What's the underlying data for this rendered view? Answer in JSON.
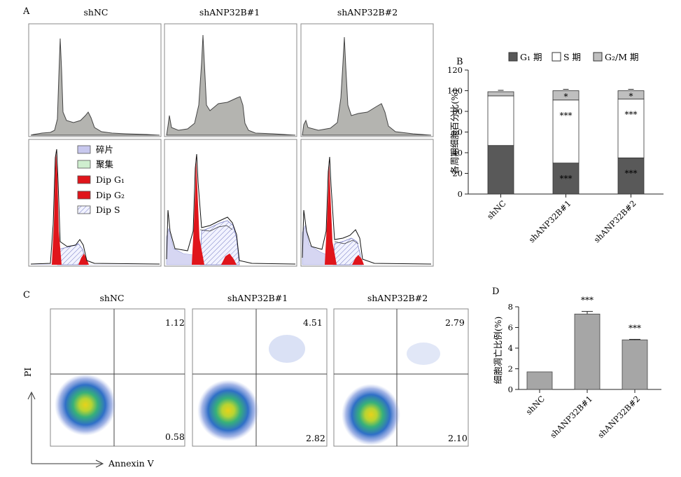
{
  "panels": {
    "a": "A",
    "b": "B",
    "c": "C",
    "d": "D"
  },
  "panel_a": {
    "groups": [
      "shNC",
      "shANP32B#1",
      "shANP32B#2"
    ],
    "legend": [
      {
        "label": "碎片",
        "color": "#c8c8ee"
      },
      {
        "label": "聚集",
        "color": "#cfeecf"
      },
      {
        "label": "Dip G₁",
        "color": "#e0151b"
      },
      {
        "label": "Dip G₂",
        "color": "#e0151b"
      },
      {
        "label": "Dip S",
        "color": "hatch"
      }
    ]
  },
  "panel_c": {
    "groups": [
      "shNC",
      "shANP32B#1",
      "shANP32B#2"
    ],
    "quadrant_values": [
      {
        "ur": "1.12",
        "lr": "0.58"
      },
      {
        "ur": "4.51",
        "lr": "2.82"
      },
      {
        "ur": "2.79",
        "lr": "2.10"
      }
    ],
    "y_axis": "PI",
    "x_axis": "Annexin Ⅴ"
  },
  "chart_data": [
    {
      "type": "bar",
      "stacked": true,
      "categories": [
        "shNC",
        "shANP32B#1",
        "shANP32B#2"
      ],
      "series": [
        {
          "name": "G₁ 期",
          "values": [
            47,
            30,
            35
          ],
          "color": "#595959"
        },
        {
          "name": "S 期",
          "values": [
            48,
            61,
            57
          ],
          "color": "#ffffff"
        },
        {
          "name": "G₂/M 期",
          "values": [
            4,
            9,
            8
          ],
          "color": "#bfbfbf"
        }
      ],
      "annotations": [
        {
          "category": "shANP32B#1",
          "series": "G₁ 期",
          "text": "***"
        },
        {
          "category": "shANP32B#1",
          "series": "S 期",
          "text": "***"
        },
        {
          "category": "shANP32B#1",
          "series": "G₂/M 期",
          "text": "*"
        },
        {
          "category": "shANP32B#2",
          "series": "G₁ 期",
          "text": "***"
        },
        {
          "category": "shANP32B#2",
          "series": "S 期",
          "text": "***"
        },
        {
          "category": "shANP32B#2",
          "series": "G₂/M 期",
          "text": "*"
        }
      ],
      "ylabel": "各周期细胞百分比(%)",
      "ylim": [
        0,
        120
      ],
      "yticks": [
        0,
        20,
        40,
        60,
        80,
        100,
        120
      ],
      "legend": "top"
    },
    {
      "type": "bar",
      "categories": [
        "shNC",
        "shANP32B#1",
        "shANP32B#2"
      ],
      "values": [
        1.7,
        7.3,
        4.8
      ],
      "errors": [
        0,
        0.25,
        0.05
      ],
      "annotations": [
        "",
        "***",
        "***"
      ],
      "ylabel": "细胞凋亡比例(%)",
      "ylim": [
        0,
        8
      ],
      "yticks": [
        0,
        2,
        4,
        6,
        8
      ]
    }
  ]
}
